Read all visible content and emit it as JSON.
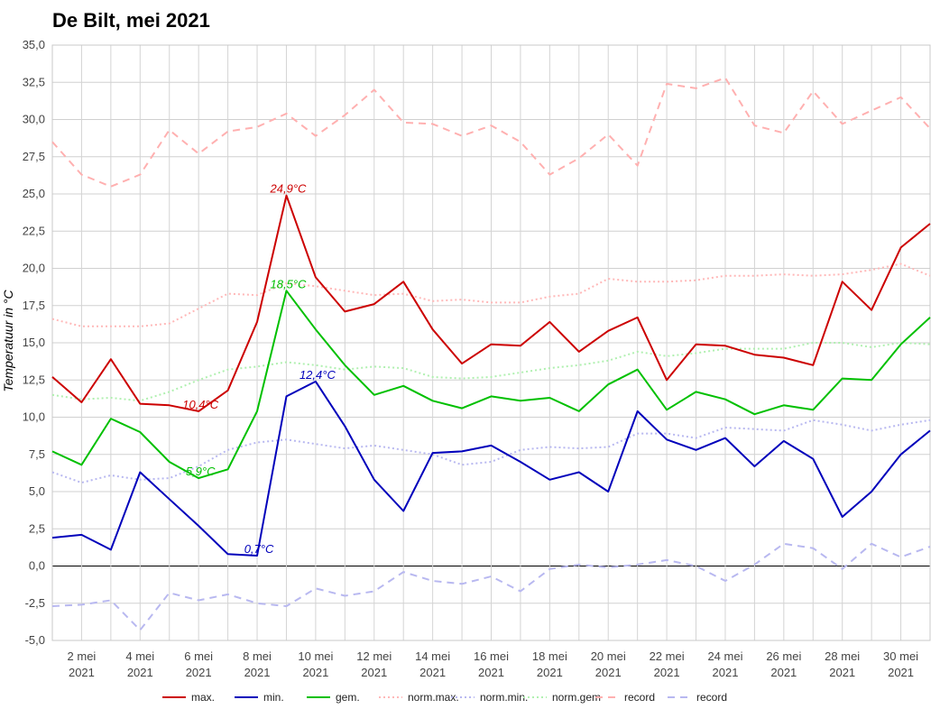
{
  "chart_data": {
    "type": "line",
    "title": "De Bilt, mei 2021",
    "ylabel": "Temperatuur in °C",
    "xlabel": "",
    "ylim": [
      -5,
      35
    ],
    "y_ticks": [
      "35,0",
      "32,5",
      "30,0",
      "27,5",
      "25,0",
      "22,5",
      "20,0",
      "17,5",
      "15,0",
      "12,5",
      "10,0",
      "7,5",
      "5,0",
      "2,5",
      "0,0",
      "-2,5",
      "-5,0"
    ],
    "x": [
      1,
      2,
      3,
      4,
      5,
      6,
      7,
      8,
      9,
      10,
      11,
      12,
      13,
      14,
      15,
      16,
      17,
      18,
      19,
      20,
      21,
      22,
      23,
      24,
      25,
      26,
      27,
      28,
      29,
      30,
      31
    ],
    "x_ticks": [
      {
        "day": 2,
        "line1": "2 mei",
        "line2": "2021"
      },
      {
        "day": 4,
        "line1": "4 mei",
        "line2": "2021"
      },
      {
        "day": 6,
        "line1": "6 mei",
        "line2": "2021"
      },
      {
        "day": 8,
        "line1": "8 mei",
        "line2": "2021"
      },
      {
        "day": 10,
        "line1": "10 mei",
        "line2": "2021"
      },
      {
        "day": 12,
        "line1": "12 mei",
        "line2": "2021"
      },
      {
        "day": 14,
        "line1": "14 mei",
        "line2": "2021"
      },
      {
        "day": 16,
        "line1": "16 mei",
        "line2": "2021"
      },
      {
        "day": 18,
        "line1": "18 mei",
        "line2": "2021"
      },
      {
        "day": 20,
        "line1": "20 mei",
        "line2": "2021"
      },
      {
        "day": 22,
        "line1": "22 mei",
        "line2": "2021"
      },
      {
        "day": 24,
        "line1": "24 mei",
        "line2": "2021"
      },
      {
        "day": 26,
        "line1": "26 mei",
        "line2": "2021"
      },
      {
        "day": 28,
        "line1": "28 mei",
        "line2": "2021"
      },
      {
        "day": 30,
        "line1": "30 mei",
        "line2": "2021"
      }
    ],
    "grid": true,
    "legend_position": "bottom",
    "series": [
      {
        "name": "record",
        "color": "#ffb0b0",
        "dash": "dashed",
        "width": 2,
        "values": [
          28.5,
          26.3,
          25.5,
          26.3,
          29.3,
          27.7,
          29.2,
          29.5,
          30.4,
          28.9,
          30.3,
          32.0,
          29.8,
          29.7,
          28.9,
          29.6,
          28.5,
          26.3,
          27.4,
          29.0,
          26.9,
          32.4,
          32.1,
          32.8,
          29.6,
          29.1,
          31.9,
          29.7,
          30.6,
          31.5,
          29.4
        ]
      },
      {
        "name": "record",
        "color": "#b8b8f0",
        "dash": "dashed",
        "width": 2,
        "values": [
          -2.7,
          -2.6,
          -2.3,
          -4.3,
          -1.8,
          -2.3,
          -1.9,
          -2.5,
          -2.7,
          -1.5,
          -2.0,
          -1.7,
          -0.4,
          -1.0,
          -1.2,
          -0.7,
          -1.7,
          -0.2,
          0.1,
          -0.1,
          0.1,
          0.4,
          0.0,
          -1.0,
          0.1,
          1.5,
          1.2,
          -0.2,
          1.5,
          0.6,
          1.3
        ]
      },
      {
        "name": "norm.max.",
        "color": "#ffb8b8",
        "dash": "dotted",
        "width": 2,
        "values": [
          16.6,
          16.1,
          16.1,
          16.1,
          16.3,
          17.3,
          18.3,
          18.2,
          19.0,
          18.8,
          18.5,
          18.2,
          18.3,
          17.8,
          17.9,
          17.7,
          17.7,
          18.1,
          18.3,
          19.3,
          19.1,
          19.1,
          19.2,
          19.5,
          19.5,
          19.6,
          19.5,
          19.6,
          19.9,
          20.3,
          19.5
        ]
      },
      {
        "name": "norm.min.",
        "color": "#b8b8f0",
        "dash": "dotted",
        "width": 2,
        "values": [
          6.3,
          5.6,
          6.1,
          5.8,
          5.9,
          6.7,
          7.8,
          8.3,
          8.5,
          8.2,
          7.9,
          8.1,
          7.8,
          7.5,
          6.8,
          7.0,
          7.8,
          8.0,
          7.9,
          8.0,
          8.9,
          8.9,
          8.6,
          9.3,
          9.2,
          9.1,
          9.8,
          9.5,
          9.1,
          9.5,
          9.8
        ]
      },
      {
        "name": "norm.gem",
        "color": "#b0f0b0",
        "dash": "dotted",
        "width": 2,
        "values": [
          11.5,
          11.2,
          11.3,
          11.1,
          11.7,
          12.5,
          13.2,
          13.4,
          13.7,
          13.5,
          13.2,
          13.4,
          13.3,
          12.7,
          12.6,
          12.7,
          13.0,
          13.3,
          13.5,
          13.8,
          14.4,
          14.1,
          14.3,
          14.6,
          14.6,
          14.6,
          15.0,
          15.0,
          14.7,
          15.0,
          14.9
        ]
      },
      {
        "name": "max.",
        "color": "#cc0000",
        "dash": "solid",
        "width": 2,
        "values": [
          12.7,
          11.0,
          13.9,
          10.9,
          10.8,
          10.4,
          11.8,
          16.4,
          24.9,
          19.4,
          17.1,
          17.6,
          19.1,
          15.9,
          13.6,
          14.9,
          14.8,
          16.4,
          14.4,
          15.8,
          16.7,
          12.5,
          14.9,
          14.8,
          14.2,
          14.0,
          13.5,
          19.1,
          17.2,
          21.4,
          23.0
        ]
      },
      {
        "name": "gem.",
        "color": "#00c000",
        "dash": "solid",
        "width": 2,
        "values": [
          7.7,
          6.8,
          9.9,
          9.0,
          7.0,
          5.9,
          6.5,
          10.4,
          18.5,
          15.9,
          13.5,
          11.5,
          12.1,
          11.1,
          10.6,
          11.4,
          11.1,
          11.3,
          10.4,
          12.2,
          13.2,
          10.5,
          11.7,
          11.2,
          10.2,
          10.8,
          10.5,
          12.6,
          12.5,
          14.9,
          16.7
        ]
      },
      {
        "name": "min.",
        "color": "#0000bb",
        "dash": "solid",
        "width": 2,
        "values": [
          1.9,
          2.1,
          1.1,
          6.3,
          4.5,
          2.7,
          0.8,
          0.7,
          11.4,
          12.4,
          9.4,
          5.8,
          3.7,
          7.6,
          7.7,
          8.1,
          7.0,
          5.8,
          6.3,
          5.0,
          10.4,
          8.5,
          7.8,
          8.6,
          6.7,
          8.4,
          7.2,
          3.3,
          5.0,
          7.5,
          9.1
        ]
      }
    ],
    "annotations": [
      {
        "text": "24,9°C",
        "x": 9,
        "y": 24.9,
        "color": "#cc0000"
      },
      {
        "text": "10,4°C",
        "x": 6,
        "y": 10.4,
        "color": "#cc0000"
      },
      {
        "text": "18,5°C",
        "x": 9,
        "y": 18.5,
        "color": "#00c000"
      },
      {
        "text": "5,9°C",
        "x": 6,
        "y": 5.9,
        "color": "#00c000"
      },
      {
        "text": "12,4°C",
        "x": 10,
        "y": 12.4,
        "color": "#0000bb"
      },
      {
        "text": "0,7°C",
        "x": 8,
        "y": 0.7,
        "color": "#0000bb"
      }
    ],
    "legend": [
      {
        "label": "max.",
        "color": "#cc0000",
        "dash": "solid"
      },
      {
        "label": "min.",
        "color": "#0000bb",
        "dash": "solid"
      },
      {
        "label": "gem.",
        "color": "#00c000",
        "dash": "solid"
      },
      {
        "label": "norm.max.",
        "color": "#ffb8b8",
        "dash": "dotted"
      },
      {
        "label": "norm.min.",
        "color": "#b8b8f0",
        "dash": "dotted"
      },
      {
        "label": "norm.gem",
        "color": "#b0f0b0",
        "dash": "dotted"
      },
      {
        "label": "record",
        "color": "#ffb0b0",
        "dash": "dashed"
      },
      {
        "label": "record",
        "color": "#b8b8f0",
        "dash": "dashed"
      }
    ]
  }
}
